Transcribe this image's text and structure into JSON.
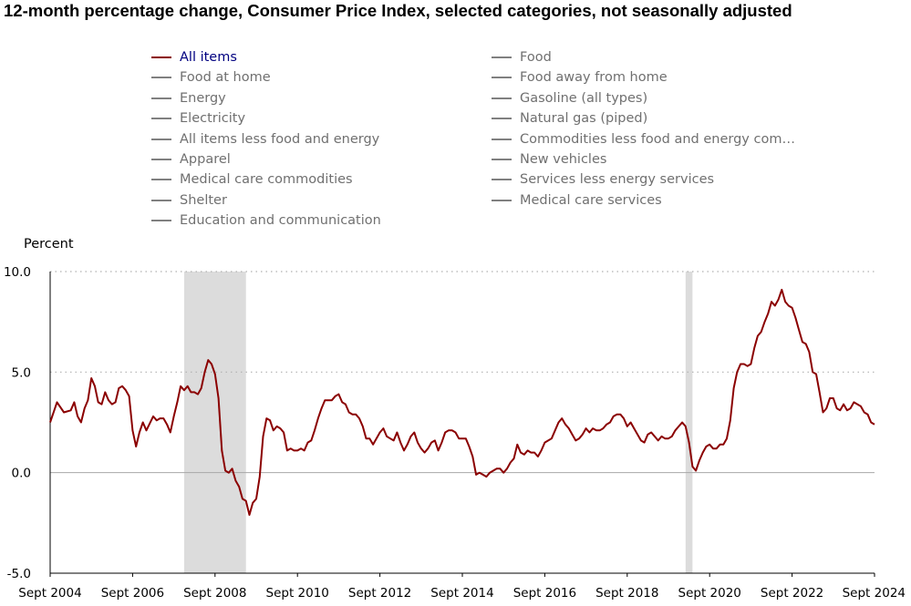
{
  "title": "12-month percentage change, Consumer Price Index, selected categories, not seasonally adjusted",
  "legend": [
    {
      "label": "All items",
      "active": true
    },
    {
      "label": "Food",
      "active": false
    },
    {
      "label": "Food at home",
      "active": false
    },
    {
      "label": "Food away from home",
      "active": false
    },
    {
      "label": "Energy",
      "active": false
    },
    {
      "label": "Gasoline (all types)",
      "active": false
    },
    {
      "label": "Electricity",
      "active": false
    },
    {
      "label": "Natural gas (piped)",
      "active": false
    },
    {
      "label": "All items less food and energy",
      "active": false
    },
    {
      "label": "Commodities less food and energy com…",
      "active": false
    },
    {
      "label": "Apparel",
      "active": false
    },
    {
      "label": "New vehicles",
      "active": false
    },
    {
      "label": "Medical care commodities",
      "active": false
    },
    {
      "label": "Services less energy services",
      "active": false
    },
    {
      "label": "Shelter",
      "active": false
    },
    {
      "label": "Medical care services",
      "active": false
    },
    {
      "label": "Education and communication",
      "active": false
    }
  ],
  "colors": {
    "series": "#8b0000",
    "recession": "#dcdcdc",
    "inactive_legend": "#808080",
    "active_legend_text": "#000080",
    "grid": "#b0b0b0"
  },
  "chart_data": {
    "type": "line",
    "ylabel": "Percent",
    "ylim": [
      -5.0,
      10.0
    ],
    "y_ticks": [
      "10.0",
      "5.0",
      "0.0",
      "-5.0"
    ],
    "x_tick_labels": [
      "Sept 2004",
      "Sept 2006",
      "Sept 2008",
      "Sept 2010",
      "Sept 2012",
      "Sept 2014",
      "Sept 2016",
      "Sept 2018",
      "Sept 2020",
      "Sept 2022",
      "Sept 2024"
    ],
    "x_start": "Sept 2004",
    "x_end": "Sept 2024",
    "grid": "horizontal dotted",
    "recessions": [
      [
        "Dec 2007",
        "Jun 2009"
      ],
      [
        "Feb 2020",
        "Apr 2020"
      ]
    ],
    "series": [
      {
        "name": "All items",
        "points": [
          [
            "Sep 2004",
            2.5
          ],
          [
            "Nov 2004",
            3.5
          ],
          [
            "Jan 2005",
            3.0
          ],
          [
            "Mar 2005",
            3.1
          ],
          [
            "Apr 2005",
            3.5
          ],
          [
            "May 2005",
            2.8
          ],
          [
            "Jun 2005",
            2.5
          ],
          [
            "Jul 2005",
            3.2
          ],
          [
            "Aug 2005",
            3.6
          ],
          [
            "Sep 2005",
            4.7
          ],
          [
            "Oct 2005",
            4.3
          ],
          [
            "Nov 2005",
            3.5
          ],
          [
            "Dec 2005",
            3.4
          ],
          [
            "Jan 2006",
            4.0
          ],
          [
            "Feb 2006",
            3.6
          ],
          [
            "Mar 2006",
            3.4
          ],
          [
            "Apr 2006",
            3.5
          ],
          [
            "May 2006",
            4.2
          ],
          [
            "Jun 2006",
            4.3
          ],
          [
            "Jul 2006",
            4.1
          ],
          [
            "Aug 2006",
            3.8
          ],
          [
            "Sep 2006",
            2.1
          ],
          [
            "Oct 2006",
            1.3
          ],
          [
            "Nov 2006",
            2.0
          ],
          [
            "Dec 2006",
            2.5
          ],
          [
            "Jan 2007",
            2.1
          ],
          [
            "Mar 2007",
            2.8
          ],
          [
            "Apr 2007",
            2.6
          ],
          [
            "May 2007",
            2.7
          ],
          [
            "Jun 2007",
            2.7
          ],
          [
            "Jul 2007",
            2.4
          ],
          [
            "Aug 2007",
            2.0
          ],
          [
            "Sep 2007",
            2.8
          ],
          [
            "Oct 2007",
            3.5
          ],
          [
            "Nov 2007",
            4.3
          ],
          [
            "Dec 2007",
            4.1
          ],
          [
            "Jan 2008",
            4.3
          ],
          [
            "Feb 2008",
            4.0
          ],
          [
            "Mar 2008",
            4.0
          ],
          [
            "Apr 2008",
            3.9
          ],
          [
            "May 2008",
            4.2
          ],
          [
            "Jun 2008",
            5.0
          ],
          [
            "Jul 2008",
            5.6
          ],
          [
            "Aug 2008",
            5.4
          ],
          [
            "Sep 2008",
            4.9
          ],
          [
            "Oct 2008",
            3.7
          ],
          [
            "Nov 2008",
            1.1
          ],
          [
            "Dec 2008",
            0.1
          ],
          [
            "Jan 2009",
            0.0
          ],
          [
            "Feb 2009",
            0.2
          ],
          [
            "Mar 2009",
            -0.4
          ],
          [
            "Apr 2009",
            -0.7
          ],
          [
            "May 2009",
            -1.3
          ],
          [
            "Jun 2009",
            -1.4
          ],
          [
            "Jul 2009",
            -2.1
          ],
          [
            "Aug 2009",
            -1.5
          ],
          [
            "Sep 2009",
            -1.3
          ],
          [
            "Oct 2009",
            -0.2
          ],
          [
            "Nov 2009",
            1.8
          ],
          [
            "Dec 2009",
            2.7
          ],
          [
            "Jan 2010",
            2.6
          ],
          [
            "Feb 2010",
            2.1
          ],
          [
            "Mar 2010",
            2.3
          ],
          [
            "Apr 2010",
            2.2
          ],
          [
            "May 2010",
            2.0
          ],
          [
            "Jun 2010",
            1.1
          ],
          [
            "Jul 2010",
            1.2
          ],
          [
            "Aug 2010",
            1.1
          ],
          [
            "Sep 2010",
            1.1
          ],
          [
            "Oct 2010",
            1.2
          ],
          [
            "Nov 2010",
            1.1
          ],
          [
            "Dec 2010",
            1.5
          ],
          [
            "Jan 2011",
            1.6
          ],
          [
            "Feb 2011",
            2.1
          ],
          [
            "Mar 2011",
            2.7
          ],
          [
            "Apr 2011",
            3.2
          ],
          [
            "May 2011",
            3.6
          ],
          [
            "Jun 2011",
            3.6
          ],
          [
            "Jul 2011",
            3.6
          ],
          [
            "Aug 2011",
            3.8
          ],
          [
            "Sep 2011",
            3.9
          ],
          [
            "Oct 2011",
            3.5
          ],
          [
            "Nov 2011",
            3.4
          ],
          [
            "Dec 2011",
            3.0
          ],
          [
            "Jan 2012",
            2.9
          ],
          [
            "Feb 2012",
            2.9
          ],
          [
            "Mar 2012",
            2.7
          ],
          [
            "Apr 2012",
            2.3
          ],
          [
            "May 2012",
            1.7
          ],
          [
            "Jun 2012",
            1.7
          ],
          [
            "Jul 2012",
            1.4
          ],
          [
            "Aug 2012",
            1.7
          ],
          [
            "Sep 2012",
            2.0
          ],
          [
            "Oct 2012",
            2.2
          ],
          [
            "Nov 2012",
            1.8
          ],
          [
            "Dec 2012",
            1.7
          ],
          [
            "Jan 2013",
            1.6
          ],
          [
            "Feb 2013",
            2.0
          ],
          [
            "Mar 2013",
            1.5
          ],
          [
            "Apr 2013",
            1.1
          ],
          [
            "May 2013",
            1.4
          ],
          [
            "Jun 2013",
            1.8
          ],
          [
            "Jul 2013",
            2.0
          ],
          [
            "Aug 2013",
            1.5
          ],
          [
            "Sep 2013",
            1.2
          ],
          [
            "Oct 2013",
            1.0
          ],
          [
            "Nov 2013",
            1.2
          ],
          [
            "Dec 2013",
            1.5
          ],
          [
            "Jan 2014",
            1.6
          ],
          [
            "Feb 2014",
            1.1
          ],
          [
            "Mar 2014",
            1.5
          ],
          [
            "Apr 2014",
            2.0
          ],
          [
            "May 2014",
            2.1
          ],
          [
            "Jun 2014",
            2.1
          ],
          [
            "Jul 2014",
            2.0
          ],
          [
            "Aug 2014",
            1.7
          ],
          [
            "Sep 2014",
            1.7
          ],
          [
            "Oct 2014",
            1.7
          ],
          [
            "Nov 2014",
            1.3
          ],
          [
            "Dec 2014",
            0.8
          ],
          [
            "Jan 2015",
            -0.1
          ],
          [
            "Feb 2015",
            0.0
          ],
          [
            "Mar 2015",
            -0.1
          ],
          [
            "Apr 2015",
            -0.2
          ],
          [
            "May 2015",
            0.0
          ],
          [
            "Jun 2015",
            0.1
          ],
          [
            "Jul 2015",
            0.2
          ],
          [
            "Aug 2015",
            0.2
          ],
          [
            "Sep 2015",
            0.0
          ],
          [
            "Oct 2015",
            0.2
          ],
          [
            "Nov 2015",
            0.5
          ],
          [
            "Dec 2015",
            0.7
          ],
          [
            "Jan 2016",
            1.4
          ],
          [
            "Feb 2016",
            1.0
          ],
          [
            "Mar 2016",
            0.9
          ],
          [
            "Apr 2016",
            1.1
          ],
          [
            "May 2016",
            1.0
          ],
          [
            "Jun 2016",
            1.0
          ],
          [
            "Jul 2016",
            0.8
          ],
          [
            "Aug 2016",
            1.1
          ],
          [
            "Sep 2016",
            1.5
          ],
          [
            "Oct 2016",
            1.6
          ],
          [
            "Nov 2016",
            1.7
          ],
          [
            "Dec 2016",
            2.1
          ],
          [
            "Jan 2017",
            2.5
          ],
          [
            "Feb 2017",
            2.7
          ],
          [
            "Mar 2017",
            2.4
          ],
          [
            "Apr 2017",
            2.2
          ],
          [
            "May 2017",
            1.9
          ],
          [
            "Jun 2017",
            1.6
          ],
          [
            "Jul 2017",
            1.7
          ],
          [
            "Aug 2017",
            1.9
          ],
          [
            "Sep 2017",
            2.2
          ],
          [
            "Oct 2017",
            2.0
          ],
          [
            "Nov 2017",
            2.2
          ],
          [
            "Dec 2017",
            2.1
          ],
          [
            "Jan 2018",
            2.1
          ],
          [
            "Feb 2018",
            2.2
          ],
          [
            "Mar 2018",
            2.4
          ],
          [
            "Apr 2018",
            2.5
          ],
          [
            "May 2018",
            2.8
          ],
          [
            "Jun 2018",
            2.9
          ],
          [
            "Jul 2018",
            2.9
          ],
          [
            "Aug 2018",
            2.7
          ],
          [
            "Sep 2018",
            2.3
          ],
          [
            "Oct 2018",
            2.5
          ],
          [
            "Nov 2018",
            2.2
          ],
          [
            "Dec 2018",
            1.9
          ],
          [
            "Jan 2019",
            1.6
          ],
          [
            "Feb 2019",
            1.5
          ],
          [
            "Mar 2019",
            1.9
          ],
          [
            "Apr 2019",
            2.0
          ],
          [
            "May 2019",
            1.8
          ],
          [
            "Jun 2019",
            1.6
          ],
          [
            "Jul 2019",
            1.8
          ],
          [
            "Aug 2019",
            1.7
          ],
          [
            "Sep 2019",
            1.7
          ],
          [
            "Oct 2019",
            1.8
          ],
          [
            "Nov 2019",
            2.1
          ],
          [
            "Dec 2019",
            2.3
          ],
          [
            "Jan 2020",
            2.5
          ],
          [
            "Feb 2020",
            2.3
          ],
          [
            "Mar 2020",
            1.5
          ],
          [
            "Apr 2020",
            0.3
          ],
          [
            "May 2020",
            0.1
          ],
          [
            "Jun 2020",
            0.6
          ],
          [
            "Jul 2020",
            1.0
          ],
          [
            "Aug 2020",
            1.3
          ],
          [
            "Sep 2020",
            1.4
          ],
          [
            "Oct 2020",
            1.2
          ],
          [
            "Nov 2020",
            1.2
          ],
          [
            "Dec 2020",
            1.4
          ],
          [
            "Jan 2021",
            1.4
          ],
          [
            "Feb 2021",
            1.7
          ],
          [
            "Mar 2021",
            2.6
          ],
          [
            "Apr 2021",
            4.2
          ],
          [
            "May 2021",
            5.0
          ],
          [
            "Jun 2021",
            5.4
          ],
          [
            "Jul 2021",
            5.4
          ],
          [
            "Aug 2021",
            5.3
          ],
          [
            "Sep 2021",
            5.4
          ],
          [
            "Oct 2021",
            6.2
          ],
          [
            "Nov 2021",
            6.8
          ],
          [
            "Dec 2021",
            7.0
          ],
          [
            "Jan 2022",
            7.5
          ],
          [
            "Feb 2022",
            7.9
          ],
          [
            "Mar 2022",
            8.5
          ],
          [
            "Apr 2022",
            8.3
          ],
          [
            "May 2022",
            8.6
          ],
          [
            "Jun 2022",
            9.1
          ],
          [
            "Jul 2022",
            8.5
          ],
          [
            "Aug 2022",
            8.3
          ],
          [
            "Sep 2022",
            8.2
          ],
          [
            "Oct 2022",
            7.7
          ],
          [
            "Nov 2022",
            7.1
          ],
          [
            "Dec 2022",
            6.5
          ],
          [
            "Jan 2023",
            6.4
          ],
          [
            "Feb 2023",
            6.0
          ],
          [
            "Mar 2023",
            5.0
          ],
          [
            "Apr 2023",
            4.9
          ],
          [
            "May 2023",
            4.0
          ],
          [
            "Jun 2023",
            3.0
          ],
          [
            "Jul 2023",
            3.2
          ],
          [
            "Aug 2023",
            3.7
          ],
          [
            "Sep 2023",
            3.7
          ],
          [
            "Oct 2023",
            3.2
          ],
          [
            "Nov 2023",
            3.1
          ],
          [
            "Dec 2023",
            3.4
          ],
          [
            "Jan 2024",
            3.1
          ],
          [
            "Feb 2024",
            3.2
          ],
          [
            "Mar 2024",
            3.5
          ],
          [
            "Apr 2024",
            3.4
          ],
          [
            "May 2024",
            3.3
          ],
          [
            "Jun 2024",
            3.0
          ],
          [
            "Jul 2024",
            2.9
          ],
          [
            "Aug 2024",
            2.5
          ],
          [
            "Sep 2024",
            2.4
          ]
        ]
      }
    ]
  }
}
